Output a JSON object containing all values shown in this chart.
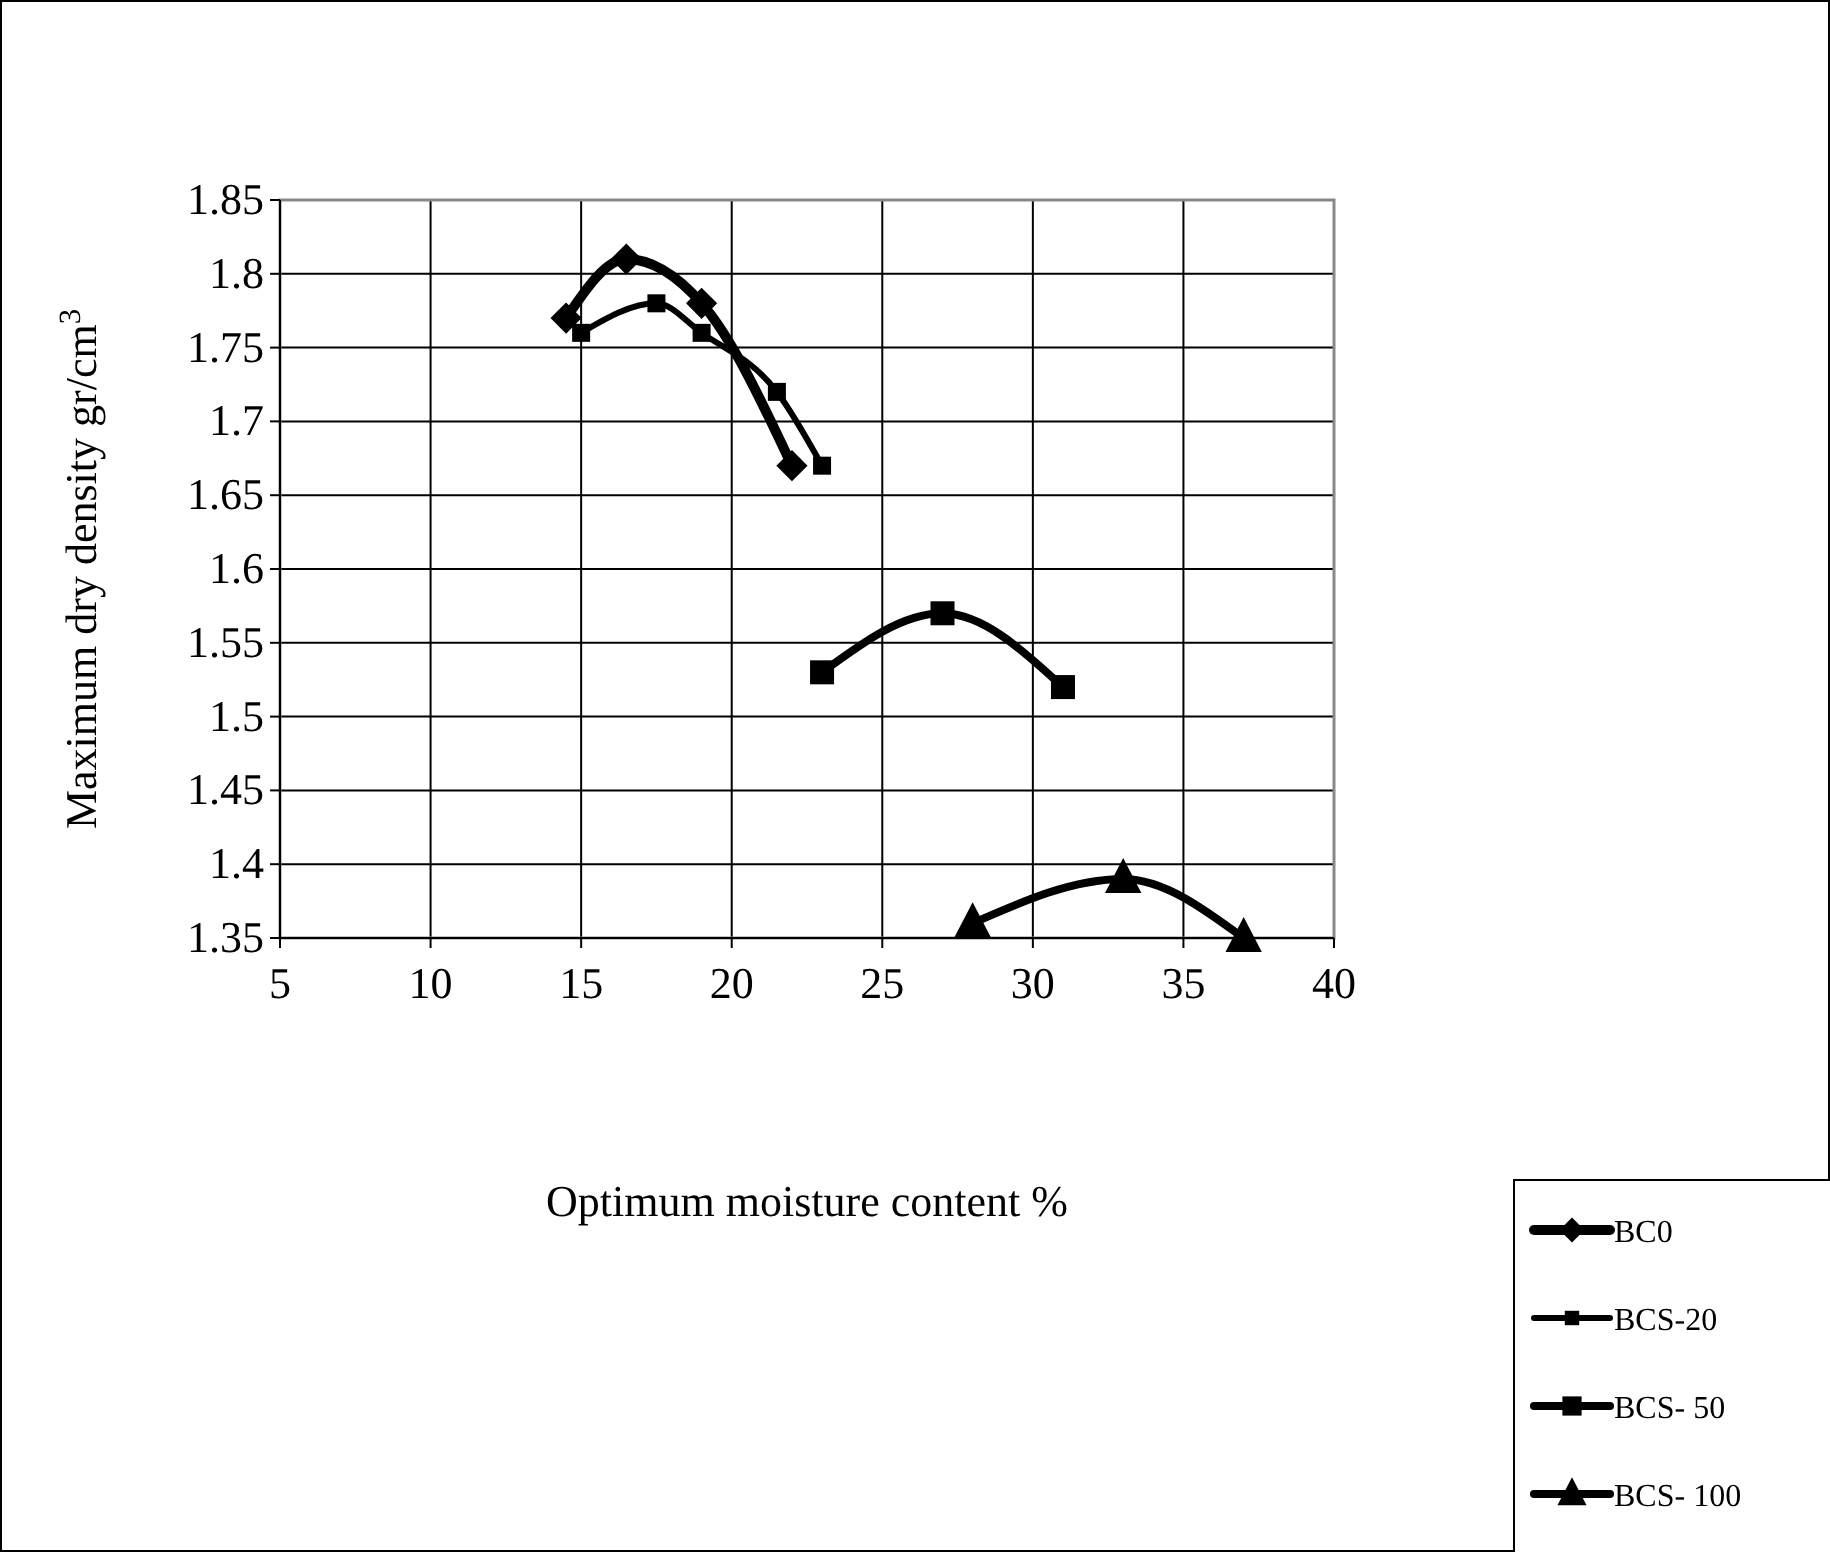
{
  "chart_data": {
    "type": "line",
    "xlabel": "Optimum moisture content %",
    "ylabel": "Maximum dry density gr/cm$^{3}$",
    "xlim": [
      5,
      40
    ],
    "xticks": [
      5,
      10,
      15,
      20,
      25,
      30,
      35,
      40
    ],
    "ylim": [
      1.35,
      1.85
    ],
    "yticks": [
      1.35,
      1.4,
      1.45,
      1.5,
      1.55,
      1.6,
      1.65,
      1.7,
      1.75,
      1.8,
      1.85
    ],
    "grid": true,
    "legend": "bottom right",
    "series": [
      {
        "name": "BC0",
        "color": "#000000",
        "marker": "diamond",
        "x": [
          14.5,
          16.5,
          19,
          22
        ],
        "values": [
          1.77,
          1.81,
          1.78,
          1.67
        ]
      },
      {
        "name": "BCS-20",
        "color": "#000000",
        "marker": "square",
        "x": [
          15,
          17.5,
          19,
          21.5,
          23
        ],
        "values": [
          1.76,
          1.78,
          1.76,
          1.72,
          1.67
        ]
      },
      {
        "name": "BCS- 50",
        "color": "#000000",
        "marker": "square",
        "x": [
          23,
          27,
          31
        ],
        "values": [
          1.53,
          1.57,
          1.52
        ]
      },
      {
        "name": "BCS- 100",
        "color": "#000000",
        "marker": "triangle",
        "x": [
          28,
          33,
          37
        ],
        "values": [
          1.36,
          1.39,
          1.35
        ]
      }
    ]
  }
}
